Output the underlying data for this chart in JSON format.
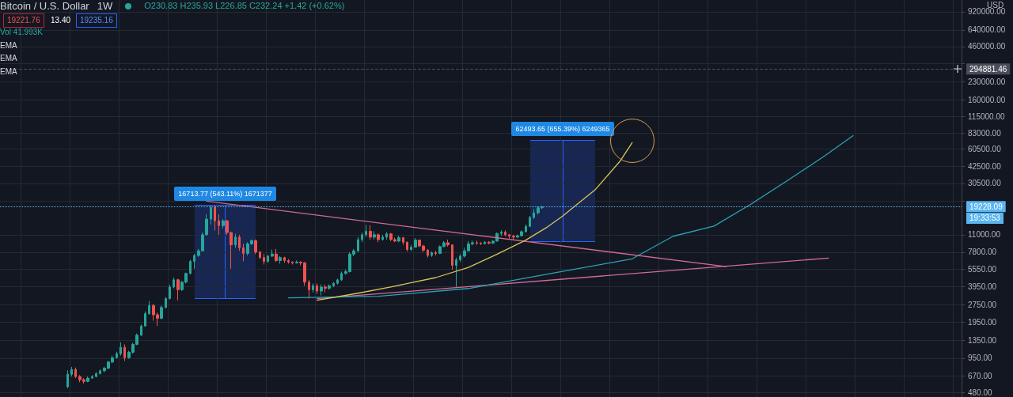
{
  "chart_data": {
    "type": "candlestick",
    "title": "Bitcoin / U.S. Dollar",
    "subtitle": "1W",
    "ylabel": "USD",
    "annotations": [
      "O230.83 H235.93 L226.85 C232.24 +1.42 (+0.62%)",
      "19221.76",
      "13.40",
      "19235.16",
      "Vol 41.993K",
      "EMA",
      "EMA",
      "EMA",
      "19:33:53",
      "16713.77 (543.11%) 1671377",
      "62493.65 (655.39%) 6249365"
    ],
    "categories": [
      null,
      null,
      null,
      null,
      null,
      null,
      null,
      null,
      null,
      null,
      null,
      null,
      null,
      null,
      null,
      null,
      null,
      null,
      null,
      null,
      null,
      null,
      null,
      null,
      null,
      null,
      null,
      null,
      null,
      null,
      null,
      null,
      null,
      null,
      null,
      null,
      null,
      null,
      null,
      null,
      null,
      null,
      null,
      null,
      null,
      null,
      null,
      null,
      null,
      null,
      null,
      null,
      null,
      null,
      null,
      null,
      null,
      null,
      null,
      null,
      null,
      null,
      null,
      null,
      null,
      null,
      null,
      null,
      null,
      null,
      null,
      null,
      null,
      null,
      null,
      null,
      null,
      null,
      null,
      null,
      null,
      null,
      null,
      null,
      null,
      null,
      null,
      null,
      null,
      null,
      null,
      null,
      null,
      null,
      null,
      null,
      null,
      null,
      null,
      null,
      null,
      null,
      null,
      null,
      null,
      null,
      null,
      null,
      null,
      null,
      null,
      null,
      null,
      null,
      null,
      null,
      null,
      null,
      null,
      null,
      null,
      null,
      null,
      null,
      null,
      null,
      null,
      null,
      null,
      null,
      null,
      null,
      null,
      null,
      null,
      null,
      null,
      null,
      null,
      null,
      null,
      null,
      null,
      null,
      null,
      null,
      null,
      null,
      null,
      null,
      null,
      null,
      null,
      null,
      null,
      null,
      null,
      null,
      null,
      null,
      null,
      null,
      null,
      null,
      null,
      null,
      null,
      null,
      null,
      null,
      null,
      null,
      null,
      null,
      null,
      null,
      null,
      null,
      null,
      null,
      null,
      null,
      null,
      null,
      null,
      null,
      null,
      null,
      null,
      null,
      null,
      null,
      null,
      null,
      null,
      null,
      null,
      null,
      null,
      null,
      null,
      null,
      null,
      null,
      null,
      null,
      null,
      null,
      null,
      null,
      null,
      null,
      null,
      null,
      null,
      null,
      null,
      null,
      null,
      null,
      null,
      null,
      null,
      null,
      null,
      null,
      null,
      null,
      null,
      null,
      null,
      null,
      null,
      null,
      null
    ],
    "ylim": [
      440,
      1160000
    ],
    "yticks": [
      {
        "value": 480,
        "label": "480.00"
      },
      {
        "value": 670,
        "label": "670.00"
      },
      {
        "value": 950,
        "label": "950.00"
      },
      {
        "value": 1350,
        "label": "1350.00"
      },
      {
        "value": 1950,
        "label": "1950.00"
      },
      {
        "value": 2750,
        "label": "2750.00"
      },
      {
        "value": 3950,
        "label": "3950.00"
      },
      {
        "value": 5550,
        "label": "5550.00"
      },
      {
        "value": 7800,
        "label": "7800.00"
      },
      {
        "value": 11000,
        "label": "11000.00"
      },
      {
        "value": 21500,
        "label": null
      },
      {
        "value": 30500,
        "label": "30500.00"
      },
      {
        "value": 42500,
        "label": "42500.00"
      },
      {
        "value": 60500,
        "label": "60500.00"
      },
      {
        "value": 83000,
        "label": "83000.00"
      },
      {
        "value": 115000,
        "label": "115000.00"
      },
      {
        "value": 160000,
        "label": "160000.00"
      },
      {
        "value": 230000,
        "label": "230000.00"
      },
      {
        "value": 330000,
        "label": null
      },
      {
        "value": 460000,
        "label": "460000.00"
      },
      {
        "value": 640000,
        "label": "640000.00"
      },
      {
        "value": 920000,
        "label": "920000.00"
      }
    ],
    "log": true,
    "grid": true,
    "tick_labels": "y",
    "ref_lines": [
      {
        "axis": "y",
        "value": 19228.09,
        "label": "19228.09",
        "color": "#5bb5f0",
        "line_style": "dotted"
      },
      {
        "axis": "y",
        "value": 294881.46,
        "label": "294881.46",
        "color": "#4a4e59",
        "line_style": "dashed"
      }
    ],
    "series": [
      {
        "ohlc": [
          null,
          null,
          null,
          null,
          null,
          null,
          null,
          null,
          null,
          null,
          null,
          null,
          null,
          null,
          null,
          null,
          [
            540,
            747,
            523,
            691
          ],
          [
            691,
            800,
            660,
            760
          ],
          [
            760,
            790,
            640,
            660
          ],
          [
            660,
            680,
            590,
            620
          ],
          [
            620,
            640,
            574,
            600
          ],
          [
            600,
            660,
            590,
            640
          ],
          [
            640,
            680,
            630,
            660
          ],
          [
            660,
            720,
            650,
            700
          ],
          [
            700,
            760,
            690,
            740
          ],
          [
            740,
            800,
            720,
            780
          ],
          [
            780,
            900,
            760,
            880
          ],
          [
            880,
            1000,
            860,
            960
          ],
          [
            960,
            1080,
            940,
            1040
          ],
          [
            1040,
            1300,
            1000,
            1180
          ],
          [
            1180,
            1250,
            900,
            960
          ],
          [
            960,
            1100,
            940,
            1070
          ],
          [
            1070,
            1290,
            1040,
            1250
          ],
          [
            1250,
            1550,
            1230,
            1500
          ],
          [
            1500,
            1850,
            1480,
            1800
          ],
          [
            1800,
            2400,
            1780,
            2300
          ],
          [
            2300,
            2950,
            2250,
            2700
          ],
          [
            2700,
            2800,
            2000,
            2250
          ],
          [
            2250,
            2350,
            1800,
            2100
          ],
          [
            2100,
            2700,
            2050,
            2600
          ],
          [
            2600,
            3200,
            2550,
            3100
          ],
          [
            3100,
            4100,
            3050,
            3900
          ],
          [
            3900,
            4700,
            3800,
            4500
          ],
          [
            4500,
            4600,
            3000,
            3700
          ],
          [
            3700,
            4400,
            3600,
            4300
          ],
          [
            4300,
            5200,
            4200,
            5100
          ],
          [
            5100,
            6700,
            5000,
            6500
          ],
          [
            6500,
            7500,
            5600,
            7300
          ],
          [
            7300,
            8300,
            7100,
            8000
          ],
          [
            8000,
            11500,
            7900,
            11000
          ],
          [
            11000,
            16500,
            10800,
            15000
          ],
          [
            15000,
            19800,
            13500,
            19000
          ],
          [
            19000,
            19500,
            12000,
            14500
          ],
          [
            14500,
            16500,
            11000,
            13200
          ],
          [
            13200,
            15000,
            12500,
            14500
          ],
          [
            14500,
            14800,
            11000,
            11500
          ],
          [
            11500,
            11700,
            5600,
            9000
          ],
          [
            9000,
            11200,
            8500,
            10500
          ],
          [
            10500,
            11000,
            8000,
            8500
          ],
          [
            8500,
            9200,
            6500,
            7600
          ],
          [
            7600,
            9500,
            7300,
            9200
          ],
          [
            9200,
            10000,
            9000,
            9800
          ],
          [
            9800,
            10000,
            7500,
            7800
          ],
          [
            7800,
            8000,
            6800,
            7000
          ],
          [
            7000,
            7500,
            6100,
            6500
          ],
          [
            6500,
            7400,
            6300,
            7200
          ],
          [
            7200,
            8200,
            7100,
            7500
          ],
          [
            7500,
            8300,
            6400,
            6600
          ],
          [
            6600,
            7200,
            6200,
            7000
          ],
          [
            7000,
            7100,
            6300,
            6600
          ],
          [
            6600,
            6800,
            6200,
            6400
          ],
          [
            6400,
            6500,
            6100,
            6300
          ],
          [
            6300,
            6600,
            6200,
            6400
          ],
          [
            6400,
            6500,
            6000,
            6300
          ],
          [
            6300,
            6400,
            4000,
            4300
          ],
          [
            4300,
            4500,
            3100,
            3700
          ],
          [
            3700,
            4200,
            3500,
            4000
          ],
          [
            4000,
            4200,
            3400,
            3600
          ],
          [
            3600,
            4100,
            3300,
            3900
          ],
          [
            3900,
            4100,
            3500,
            3800
          ],
          [
            3800,
            4100,
            3700,
            4000
          ],
          [
            4000,
            4300,
            3900,
            4200
          ],
          [
            4200,
            4600,
            4100,
            4500
          ],
          [
            4500,
            5300,
            4400,
            5100
          ],
          [
            5100,
            5500,
            5000,
            5300
          ],
          [
            5300,
            7800,
            5200,
            7500
          ],
          [
            7500,
            8300,
            7200,
            8000
          ],
          [
            8000,
            10500,
            7800,
            10000
          ],
          [
            10000,
            11500,
            9500,
            11000
          ],
          [
            11000,
            13400,
            10500,
            11800
          ],
          [
            11800,
            13300,
            10000,
            10500
          ],
          [
            10500,
            11800,
            10000,
            11000
          ],
          [
            11000,
            11300,
            9500,
            10000
          ],
          [
            10000,
            11000,
            9800,
            10500
          ],
          [
            10500,
            11600,
            10000,
            11200
          ],
          [
            11200,
            11400,
            9700,
            10000
          ],
          [
            10000,
            10400,
            9500,
            9700
          ],
          [
            9700,
            10800,
            9500,
            10400
          ],
          [
            10400,
            10500,
            9000,
            9500
          ],
          [
            9500,
            9600,
            7900,
            8200
          ],
          [
            8200,
            9000,
            8000,
            8600
          ],
          [
            8600,
            10300,
            8500,
            9900
          ],
          [
            9900,
            10000,
            8600,
            8800
          ],
          [
            8800,
            9000,
            7800,
            8100
          ],
          [
            8100,
            8300,
            7000,
            7300
          ],
          [
            7300,
            7900,
            7100,
            7700
          ],
          [
            7700,
            8000,
            7300,
            7600
          ],
          [
            7600,
            8900,
            7500,
            8700
          ],
          [
            8700,
            9700,
            8600,
            9400
          ],
          [
            9400,
            10000,
            8700,
            9000
          ],
          [
            9000,
            9100,
            5500,
            6000
          ],
          [
            6000,
            7000,
            3900,
            6700
          ],
          [
            6700,
            7500,
            6400,
            7200
          ],
          [
            7200,
            8500,
            7000,
            8000
          ],
          [
            8000,
            9700,
            7900,
            9200
          ],
          [
            9200,
            9800,
            8900,
            9400
          ],
          [
            9400,
            9800,
            9000,
            9300
          ],
          [
            9300,
            9500,
            9000,
            9200
          ],
          [
            9200,
            9700,
            9100,
            9500
          ],
          [
            9500,
            9700,
            9100,
            9300
          ],
          [
            9300,
            9900,
            9200,
            9700
          ],
          [
            9700,
            11500,
            9600,
            11300
          ],
          [
            11300,
            12000,
            10800,
            11600
          ],
          [
            11600,
            12000,
            10700,
            11000
          ],
          [
            11000,
            11200,
            10200,
            10700
          ],
          [
            10700,
            11000,
            10000,
            10500
          ],
          [
            10500,
            11000,
            10300,
            10800
          ],
          [
            10800,
            12000,
            10600,
            11700
          ],
          [
            11700,
            13500,
            11500,
            13000
          ],
          [
            13000,
            16000,
            12800,
            15500
          ],
          [
            15500,
            18300,
            15000,
            17000
          ],
          [
            17000,
            19300,
            16400,
            18800
          ],
          [
            18800,
            19500,
            18300,
            19200
          ],
          null,
          null,
          null,
          null,
          null,
          null,
          null,
          null,
          null,
          null,
          null,
          null,
          null,
          null,
          null,
          null,
          null,
          null,
          null,
          null,
          null,
          null,
          null,
          null,
          null,
          null,
          null,
          null,
          null,
          null,
          null,
          null,
          null,
          null,
          null,
          null,
          null,
          null,
          null,
          null,
          null,
          null,
          null,
          null,
          null,
          null,
          null,
          null,
          null,
          null,
          null,
          null,
          null,
          null,
          null,
          null,
          null,
          null,
          null,
          null,
          null,
          null,
          null,
          null,
          null,
          null,
          null,
          null,
          null,
          null,
          null,
          null,
          null,
          null,
          null,
          null,
          null,
          null,
          null,
          null,
          null,
          null,
          null,
          null,
          null,
          null,
          null,
          null,
          null,
          null,
          null,
          null,
          null,
          null,
          null,
          null,
          null,
          null,
          null,
          null,
          null,
          null
        ],
        "colors": [
          null,
          null,
          null,
          null,
          null,
          null,
          null,
          null,
          null,
          null,
          null,
          null,
          null,
          null,
          null,
          null,
          "#26a69a",
          "#26a69a",
          "#ef5350",
          "#ef5350",
          "#ef5350",
          "#26a69a",
          "#26a69a",
          "#26a69a",
          "#26a69a",
          "#26a69a",
          "#26a69a",
          "#26a69a",
          "#26a69a",
          "#26a69a",
          "#ef5350",
          "#26a69a",
          "#26a69a",
          "#26a69a",
          "#26a69a",
          "#26a69a",
          "#26a69a",
          "#ef5350",
          "#ef5350",
          "#26a69a",
          "#26a69a",
          "#26a69a",
          "#26a69a",
          "#ef5350",
          "#26a69a",
          "#26a69a",
          "#26a69a",
          "#26a69a",
          "#26a69a",
          "#26a69a",
          "#26a69a",
          "#26a69a",
          "#ef5350",
          "#ef5350",
          "#26a69a",
          "#ef5350",
          "#ef5350",
          "#26a69a",
          "#ef5350",
          "#ef5350",
          "#26a69a",
          "#26a69a",
          "#ef5350",
          "#ef5350",
          "#ef5350",
          "#26a69a",
          "#26a69a",
          "#ef5350",
          "#26a69a",
          "#ef5350",
          "#ef5350",
          "#ef5350",
          "#26a69a",
          "#ef5350",
          "#ef5350",
          "#ef5350",
          "#26a69a",
          "#ef5350",
          "#26a69a",
          "#ef5350",
          "#26a69a",
          "#26a69a",
          "#26a69a",
          "#26a69a",
          "#26a69a",
          "#26a69a",
          "#26a69a",
          "#26a69a",
          "#26a69a",
          "#26a69a",
          "#ef5350",
          "#26a69a",
          "#ef5350",
          "#26a69a",
          "#26a69a",
          "#ef5350",
          "#ef5350",
          "#26a69a",
          "#ef5350",
          "#ef5350",
          "#26a69a",
          "#26a69a",
          "#ef5350",
          "#ef5350",
          "#ef5350",
          "#26a69a",
          "#ef5350",
          "#26a69a",
          "#26a69a",
          "#ef5350",
          "#ef5350",
          "#26a69a",
          "#26a69a",
          "#26a69a",
          "#26a69a",
          "#26a69a",
          "#ef5350",
          "#ef5350",
          "#26a69a",
          "#ef5350",
          "#26a69a",
          "#26a69a",
          "#26a69a",
          "#ef5350",
          "#ef5350",
          "#ef5350",
          "#26a69a",
          "#26a69a",
          "#26a69a",
          "#26a69a",
          "#26a69a",
          "#26a69a",
          "#26a69a",
          null,
          null,
          null,
          null,
          null,
          null,
          null,
          null,
          null,
          null,
          null,
          null,
          null,
          null,
          null,
          null,
          null,
          null,
          null,
          null,
          null,
          null,
          null,
          null,
          null,
          null,
          null,
          null,
          null,
          null,
          null,
          null,
          null,
          null,
          null,
          null,
          null,
          null,
          null,
          null,
          null,
          null,
          null,
          null,
          null,
          null,
          null,
          null,
          null,
          null,
          null,
          null,
          null,
          null,
          null,
          null,
          null,
          null,
          null,
          null,
          null,
          null,
          null,
          null,
          null,
          null,
          null,
          null,
          null,
          null,
          null,
          null,
          null,
          null,
          null,
          null,
          null,
          null,
          null,
          null,
          null,
          null,
          null,
          null,
          null,
          null,
          null,
          null,
          null,
          null,
          null,
          null,
          null,
          null,
          null,
          null,
          null,
          null,
          null,
          null,
          null,
          null
        ]
      },
      {
        "type": "line",
        "color": "#d26b94",
        "values": [
          null,
          null,
          null,
          null,
          null,
          null,
          null,
          null,
          null,
          null,
          null,
          null,
          null,
          null,
          null,
          null,
          null,
          null,
          null,
          null,
          null,
          null,
          null,
          null,
          null,
          null,
          null,
          null,
          null,
          null,
          null,
          null,
          null,
          null,
          null,
          null,
          null,
          null,
          null,
          null,
          null,
          null,
          null,
          null,
          null,
          null,
          null,
          null,
          null,
          null,
          21400,
          null,
          null,
          null,
          null,
          null,
          null,
          null,
          null,
          null,
          null,
          null,
          null,
          null,
          null,
          null,
          null,
          null,
          null,
          null,
          null,
          null,
          null,
          null,
          null,
          null,
          null,
          null,
          null,
          null,
          null,
          null,
          null,
          null,
          null,
          null,
          null,
          null,
          null,
          null,
          null,
          null,
          null,
          null,
          null,
          null,
          null,
          null,
          null,
          null,
          null,
          null,
          null,
          null,
          null,
          null,
          null,
          null,
          null,
          null,
          null,
          null,
          null,
          null,
          null,
          null,
          null,
          null,
          null,
          null,
          null,
          null,
          null,
          null,
          null,
          null,
          null,
          null,
          null,
          null,
          null,
          null,
          null,
          null,
          null,
          null,
          null,
          null,
          null,
          null,
          null,
          null,
          null,
          null,
          null,
          null,
          null,
          null,
          null,
          null,
          null,
          null,
          null,
          null,
          null,
          null,
          null,
          null,
          null,
          null,
          null,
          null,
          null,
          null,
          null,
          null,
          null,
          null,
          null,
          null,
          null,
          null,
          null,
          null,
          null,
          null,
          null,
          5850,
          null,
          null,
          null,
          null,
          null,
          null,
          null,
          null,
          null,
          null,
          null,
          null,
          null,
          null,
          null,
          null,
          null,
          null,
          null,
          null,
          null,
          null,
          null,
          null,
          null,
          null,
          null,
          null,
          null,
          null,
          null,
          null,
          null,
          null,
          null,
          null,
          null,
          null,
          null,
          null,
          null,
          null,
          null,
          null,
          null,
          null,
          null,
          null,
          null,
          null,
          null,
          null,
          null,
          null,
          null,
          null,
          null
        ]
      },
      {
        "type": "line",
        "color": "#d26b94",
        "values": [
          null,
          null,
          null,
          null,
          null,
          null,
          null,
          null,
          null,
          null,
          null,
          null,
          null,
          null,
          null,
          null,
          null,
          null,
          null,
          null,
          null,
          null,
          null,
          null,
          null,
          null,
          null,
          null,
          null,
          null,
          null,
          null,
          null,
          null,
          null,
          null,
          null,
          null,
          null,
          null,
          null,
          null,
          null,
          null,
          null,
          null,
          null,
          null,
          null,
          null,
          null,
          null,
          null,
          null,
          null,
          null,
          null,
          null,
          null,
          null,
          null,
          null,
          null,
          null,
          null,
          null,
          null,
          null,
          null,
          null,
          null,
          null,
          null,
          null,
          null,
          null,
          null,
          3100,
          null,
          null,
          null,
          null,
          null,
          null,
          null,
          null,
          null,
          null,
          null,
          null,
          null,
          null,
          null,
          null,
          null,
          null,
          null,
          null,
          null,
          null,
          null,
          null,
          null,
          null,
          null,
          null,
          null,
          null,
          null,
          null,
          null,
          null,
          null,
          null,
          null,
          null,
          null,
          null,
          null,
          null,
          null,
          null,
          null,
          null,
          null,
          null,
          null,
          null,
          null,
          null,
          null,
          null,
          null,
          null,
          null,
          null,
          null,
          null,
          null,
          null,
          null,
          null,
          null,
          null,
          null,
          null,
          null,
          null,
          null,
          null,
          null,
          null,
          null,
          null,
          null,
          null,
          null,
          null,
          null,
          null,
          null,
          null,
          null,
          null,
          null,
          null,
          null,
          null,
          null,
          null,
          null,
          null,
          null,
          null,
          null,
          null,
          null,
          null,
          null,
          null,
          null,
          null,
          null,
          null,
          null,
          null,
          null,
          null,
          null,
          null,
          null,
          null,
          null,
          null,
          null,
          null,
          null,
          null,
          null,
          null,
          null,
          null,
          6930,
          null,
          null,
          null,
          null,
          null,
          null,
          null,
          null,
          null,
          null,
          null,
          null,
          null,
          null,
          null,
          null,
          null,
          null,
          null,
          null,
          null,
          null,
          null,
          null,
          null,
          null,
          null,
          null,
          null,
          null,
          null,
          null
        ]
      },
      {
        "type": "line",
        "color": "#2aa3b3",
        "values": [
          null,
          null,
          null,
          null,
          null,
          null,
          null,
          null,
          null,
          null,
          null,
          null,
          null,
          null,
          null,
          null,
          null,
          null,
          null,
          null,
          null,
          null,
          null,
          null,
          null,
          null,
          null,
          null,
          null,
          null,
          null,
          null,
          null,
          null,
          null,
          null,
          null,
          null,
          null,
          null,
          null,
          null,
          null,
          null,
          null,
          null,
          null,
          null,
          null,
          null,
          null,
          null,
          null,
          null,
          null,
          null,
          null,
          null,
          null,
          null,
          null,
          null,
          null,
          null,
          null,
          null,
          null,
          null,
          null,
          null,
          3148,
          null,
          null,
          null,
          null,
          null,
          null,
          null,
          null,
          null,
          null,
          null,
          null,
          null,
          null,
          null,
          null,
          null,
          null,
          null,
          null,
          null,
          3246,
          null,
          null,
          null,
          null,
          null,
          null,
          null,
          null,
          null,
          null,
          null,
          null,
          null,
          null,
          null,
          null,
          null,
          null,
          null,
          null,
          null,
          3790,
          null,
          null,
          null,
          null,
          null,
          null,
          null,
          null,
          null,
          null,
          null,
          null,
          null,
          null,
          null,
          null,
          null,
          null,
          null,
          null,
          null,
          null,
          5325,
          null,
          null,
          null,
          null,
          null,
          null,
          null,
          null,
          null,
          null,
          null,
          null,
          null,
          null,
          null,
          null,
          6825,
          null,
          null,
          null,
          null,
          null,
          null,
          null,
          null,
          null,
          10680,
          null,
          null,
          null,
          null,
          null,
          null,
          null,
          null,
          null,
          13060,
          null,
          null,
          null,
          null,
          null,
          null,
          null,
          null,
          20162,
          null,
          null,
          null,
          null,
          null,
          null,
          null,
          null,
          null,
          34100,
          null,
          null,
          null,
          null,
          null,
          null,
          null,
          52500,
          null,
          null,
          null,
          null,
          null,
          null,
          78600,
          null,
          null,
          null,
          null,
          null,
          null,
          null,
          null,
          null,
          null,
          null,
          null,
          null,
          null,
          null,
          null,
          null,
          null,
          null,
          null,
          null,
          null,
          null,
          null,
          null,
          null
        ]
      },
      {
        "type": "line",
        "color": "#d8c45e",
        "values": [
          null,
          null,
          null,
          null,
          null,
          null,
          null,
          null,
          null,
          null,
          null,
          null,
          null,
          null,
          null,
          null,
          null,
          null,
          null,
          null,
          null,
          null,
          null,
          null,
          null,
          null,
          null,
          null,
          null,
          null,
          null,
          null,
          null,
          null,
          null,
          null,
          null,
          null,
          null,
          null,
          null,
          null,
          null,
          null,
          null,
          null,
          null,
          null,
          null,
          null,
          null,
          null,
          null,
          null,
          null,
          null,
          null,
          null,
          null,
          null,
          null,
          null,
          null,
          null,
          null,
          null,
          null,
          null,
          null,
          null,
          null,
          null,
          null,
          null,
          null,
          null,
          null,
          3004,
          null,
          null,
          null,
          null,
          null,
          null,
          null,
          null,
          null,
          3450,
          null,
          null,
          null,
          null,
          null,
          null,
          null,
          null,
          3970,
          null,
          null,
          null,
          null,
          null,
          null,
          null,
          null,
          null,
          4704,
          null,
          null,
          null,
          null,
          null,
          null,
          null,
          5750,
          null,
          null,
          null,
          null,
          null,
          null,
          7480,
          null,
          null,
          null,
          null,
          null,
          null,
          9890,
          null,
          null,
          null,
          null,
          12660,
          null,
          null,
          null,
          15950,
          null,
          null,
          null,
          null,
          null,
          null,
          null,
          27000,
          null,
          null,
          null,
          null,
          null,
          47200,
          null,
          null,
          68400,
          null,
          null,
          null,
          null,
          null,
          null,
          null,
          null,
          null,
          null,
          null,
          null,
          null,
          null,
          null,
          null,
          null,
          null,
          null,
          null,
          null,
          null,
          null,
          null,
          null,
          null,
          null,
          null,
          null,
          null,
          null,
          null,
          null,
          null,
          null,
          null,
          null,
          null,
          null,
          null,
          null,
          null,
          null,
          null,
          null,
          null,
          null,
          null,
          null,
          null,
          null,
          null,
          null,
          null,
          null,
          null,
          null,
          null,
          null,
          null,
          null,
          null,
          null,
          null,
          null,
          null,
          null,
          null,
          null,
          null,
          null,
          null,
          null,
          null,
          null,
          null,
          null,
          null,
          null,
          null
        ]
      }
    ]
  }
}
